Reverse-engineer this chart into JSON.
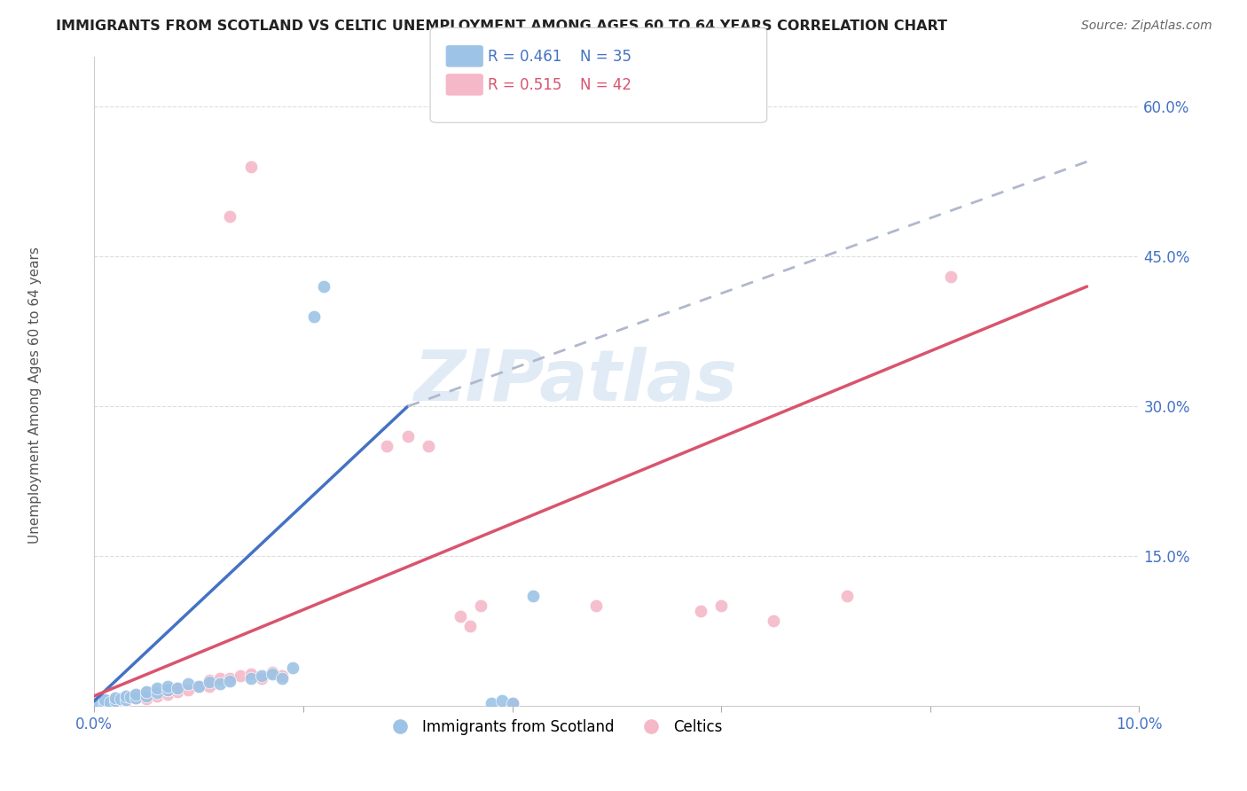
{
  "title": "IMMIGRANTS FROM SCOTLAND VS CELTIC UNEMPLOYMENT AMONG AGES 60 TO 64 YEARS CORRELATION CHART",
  "source": "Source: ZipAtlas.com",
  "ylabel": "Unemployment Among Ages 60 to 64 years",
  "xlim": [
    0.0,
    0.1
  ],
  "ylim": [
    0.0,
    0.65
  ],
  "x_ticks": [
    0.0,
    0.02,
    0.04,
    0.06,
    0.08,
    0.1
  ],
  "x_tick_labels": [
    "0.0%",
    "",
    "",
    "",
    "",
    "10.0%"
  ],
  "y_ticks": [
    0.0,
    0.15,
    0.3,
    0.45,
    0.6
  ],
  "y_tick_labels": [
    "",
    "15.0%",
    "30.0%",
    "45.0%",
    "60.0%"
  ],
  "watermark": "ZIPatlas",
  "legend_r1_color": "#9dc3e6",
  "legend_r1_label": "R = 0.461",
  "legend_r1_n": "N = 35",
  "legend_r2_color": "#f4b8c8",
  "legend_r2_label": "R = 0.515",
  "legend_r2_n": "N = 42",
  "bottom_legend": [
    "Immigrants from Scotland",
    "Celtics"
  ],
  "scotland_color": "#9dc3e6",
  "celtics_color": "#f4b8c8",
  "trendline_scotland_color": "#4472c4",
  "trendline_celtics_color": "#d9546e",
  "trendline_ext_color": "#b0b8cc",
  "scotland_points": [
    [
      0.0005,
      0.002
    ],
    [
      0.001,
      0.003
    ],
    [
      0.001,
      0.006
    ],
    [
      0.0015,
      0.004
    ],
    [
      0.002,
      0.005
    ],
    [
      0.002,
      0.008
    ],
    [
      0.0025,
      0.007
    ],
    [
      0.003,
      0.006
    ],
    [
      0.003,
      0.01
    ],
    [
      0.0035,
      0.009
    ],
    [
      0.004,
      0.008
    ],
    [
      0.004,
      0.012
    ],
    [
      0.005,
      0.01
    ],
    [
      0.005,
      0.014
    ],
    [
      0.006,
      0.013
    ],
    [
      0.006,
      0.018
    ],
    [
      0.007,
      0.016
    ],
    [
      0.007,
      0.02
    ],
    [
      0.008,
      0.018
    ],
    [
      0.009,
      0.022
    ],
    [
      0.01,
      0.02
    ],
    [
      0.011,
      0.024
    ],
    [
      0.012,
      0.022
    ],
    [
      0.013,
      0.025
    ],
    [
      0.015,
      0.028
    ],
    [
      0.016,
      0.03
    ],
    [
      0.017,
      0.032
    ],
    [
      0.018,
      0.028
    ],
    [
      0.019,
      0.038
    ],
    [
      0.021,
      0.39
    ],
    [
      0.022,
      0.42
    ],
    [
      0.038,
      0.003
    ],
    [
      0.039,
      0.005
    ],
    [
      0.04,
      0.003
    ],
    [
      0.042,
      0.11
    ]
  ],
  "celtics_points": [
    [
      0.001,
      0.003
    ],
    [
      0.001,
      0.005
    ],
    [
      0.002,
      0.004
    ],
    [
      0.002,
      0.008
    ],
    [
      0.003,
      0.005
    ],
    [
      0.003,
      0.01
    ],
    [
      0.004,
      0.008
    ],
    [
      0.004,
      0.012
    ],
    [
      0.005,
      0.007
    ],
    [
      0.005,
      0.013
    ],
    [
      0.006,
      0.01
    ],
    [
      0.006,
      0.015
    ],
    [
      0.007,
      0.012
    ],
    [
      0.007,
      0.016
    ],
    [
      0.008,
      0.014
    ],
    [
      0.008,
      0.018
    ],
    [
      0.009,
      0.016
    ],
    [
      0.01,
      0.02
    ],
    [
      0.011,
      0.02
    ],
    [
      0.011,
      0.026
    ],
    [
      0.012,
      0.028
    ],
    [
      0.013,
      0.028
    ],
    [
      0.014,
      0.03
    ],
    [
      0.015,
      0.032
    ],
    [
      0.016,
      0.028
    ],
    [
      0.017,
      0.034
    ],
    [
      0.018,
      0.03
    ],
    [
      0.013,
      0.49
    ],
    [
      0.015,
      0.54
    ],
    [
      0.028,
      0.26
    ],
    [
      0.03,
      0.27
    ],
    [
      0.032,
      0.26
    ],
    [
      0.035,
      0.09
    ],
    [
      0.036,
      0.08
    ],
    [
      0.037,
      0.1
    ],
    [
      0.04,
      0.003
    ],
    [
      0.048,
      0.1
    ],
    [
      0.058,
      0.095
    ],
    [
      0.06,
      0.1
    ],
    [
      0.065,
      0.085
    ],
    [
      0.072,
      0.11
    ],
    [
      0.082,
      0.43
    ]
  ],
  "trendline_scotland_x0": 0.0,
  "trendline_scotland_y0": 0.005,
  "trendline_scotland_x1": 0.03,
  "trendline_scotland_y1": 0.3,
  "trendline_ext_x0": 0.03,
  "trendline_ext_y0": 0.3,
  "trendline_ext_x1": 0.095,
  "trendline_ext_y1": 0.545,
  "trendline_celtics_x0": 0.0,
  "trendline_celtics_y0": 0.01,
  "trendline_celtics_x1": 0.095,
  "trendline_celtics_y1": 0.42,
  "grid_color": "#dddddd",
  "background_color": "#ffffff",
  "title_color": "#222222",
  "tick_label_color": "#4472c4"
}
